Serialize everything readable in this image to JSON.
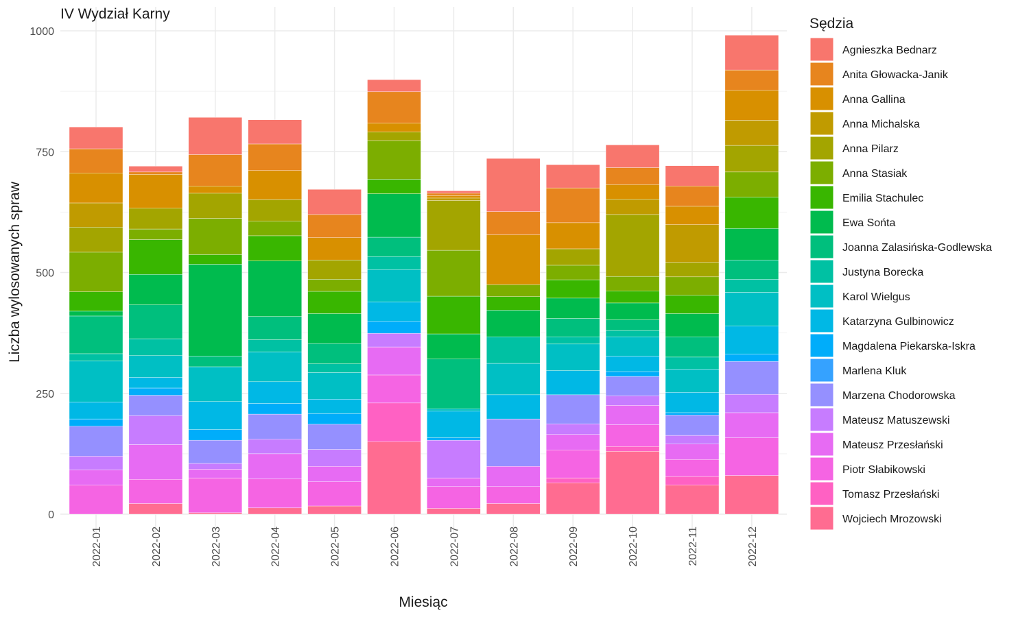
{
  "chart_data": {
    "type": "bar",
    "stacked": true,
    "title": "IV Wydział Karny",
    "xlabel": "Miesiąc",
    "ylabel": "Liczba wylosowanych spraw",
    "ylim": [
      0,
      1000
    ],
    "yticks": [
      0,
      250,
      500,
      750,
      1000
    ],
    "grid": true,
    "legend_title": "Sędzia",
    "legend_position": "right",
    "categories": [
      "2022-01",
      "2022-02",
      "2022-03",
      "2022-04",
      "2022-05",
      "2022-06",
      "2022-07",
      "2022-08",
      "2022-09",
      "2022-10",
      "2022-11",
      "2022-12"
    ],
    "series": [
      {
        "name": "Agnieszka Bednarz",
        "color": "#F8766D",
        "values": [
          45,
          12,
          77,
          50,
          52,
          25,
          5,
          110,
          48,
          47,
          42,
          72
        ]
      },
      {
        "name": "Anita Głowacka-Janik",
        "color": "#E7851E",
        "values": [
          50,
          5,
          65,
          55,
          48,
          65,
          5,
          48,
          72,
          35,
          42,
          42
        ]
      },
      {
        "name": "Anna Gallina",
        "color": "#D89000",
        "values": [
          62,
          70,
          15,
          60,
          46,
          18,
          5,
          103,
          54,
          30,
          38,
          62
        ]
      },
      {
        "name": "Anna Michalska",
        "color": "#C09B00",
        "values": [
          50,
          0,
          0,
          0,
          0,
          0,
          5,
          0,
          0,
          32,
          78,
          52
        ]
      },
      {
        "name": "Anna Pilarz",
        "color": "#A3A500",
        "values": [
          52,
          43,
          52,
          45,
          40,
          18,
          103,
          0,
          34,
          128,
          30,
          55
        ]
      },
      {
        "name": "Anna Stasiak",
        "color": "#7CAE00",
        "values": [
          82,
          22,
          75,
          30,
          25,
          80,
          95,
          25,
          30,
          30,
          38,
          52
        ]
      },
      {
        "name": "Emilia Stachulec",
        "color": "#39B600",
        "values": [
          40,
          72,
          20,
          52,
          46,
          30,
          78,
          28,
          38,
          25,
          38,
          65
        ]
      },
      {
        "name": "Ewa Sońta",
        "color": "#00BB4E",
        "values": [
          10,
          63,
          190,
          115,
          62,
          90,
          52,
          55,
          42,
          35,
          48,
          65
        ]
      },
      {
        "name": "Joanna Zalasińska-Godlewska",
        "color": "#00BF7D",
        "values": [
          78,
          70,
          22,
          48,
          42,
          40,
          103,
          0,
          38,
          22,
          42,
          40
        ]
      },
      {
        "name": "Justyna Borecka",
        "color": "#00C1A3",
        "values": [
          15,
          35,
          0,
          25,
          18,
          27,
          0,
          55,
          15,
          13,
          25,
          27
        ]
      },
      {
        "name": "Karol Wielgus",
        "color": "#00BFC4",
        "values": [
          85,
          45,
          72,
          62,
          55,
          67,
          5,
          65,
          55,
          40,
          48,
          70
        ]
      },
      {
        "name": "Katarzyna Gulbinowicz",
        "color": "#00B8E5",
        "values": [
          35,
          22,
          58,
          45,
          30,
          40,
          55,
          50,
          50,
          32,
          42,
          58
        ]
      },
      {
        "name": "Magdalena Piekarska-Iskra",
        "color": "#00ADFA",
        "values": [
          15,
          15,
          22,
          22,
          22,
          25,
          5,
          0,
          0,
          10,
          5,
          15
        ]
      },
      {
        "name": "Marlena Kluk",
        "color": "#35A2FF",
        "values": [
          0,
          0,
          0,
          0,
          0,
          0,
          0,
          0,
          0,
          0,
          0,
          0
        ]
      },
      {
        "name": "Marzena Chodorowska",
        "color": "#9590FF",
        "values": [
          62,
          42,
          48,
          52,
          52,
          0,
          0,
          98,
          60,
          40,
          42,
          68
        ]
      },
      {
        "name": "Mateusz Matuszewski",
        "color": "#C77CFF",
        "values": [
          28,
          60,
          12,
          30,
          35,
          28,
          78,
          0,
          22,
          20,
          18,
          38
        ]
      },
      {
        "name": "Mateusz Przesłański",
        "color": "#E76BF3",
        "values": [
          32,
          72,
          18,
          52,
          32,
          58,
          18,
          42,
          32,
          40,
          32,
          52
        ]
      },
      {
        "name": "Piotr Słabikowski",
        "color": "#F564E3",
        "values": [
          60,
          50,
          72,
          60,
          50,
          58,
          45,
          35,
          58,
          45,
          35,
          78
        ]
      },
      {
        "name": "Tomasz Przesłański",
        "color": "#FF61C3",
        "values": [
          0,
          0,
          0,
          0,
          0,
          80,
          0,
          0,
          10,
          10,
          18,
          0
        ]
      },
      {
        "name": "Wojciech Mrozowski",
        "color": "#FF6C91",
        "values": [
          0,
          22,
          3,
          13,
          17,
          150,
          12,
          22,
          65,
          130,
          60,
          80
        ]
      }
    ]
  }
}
